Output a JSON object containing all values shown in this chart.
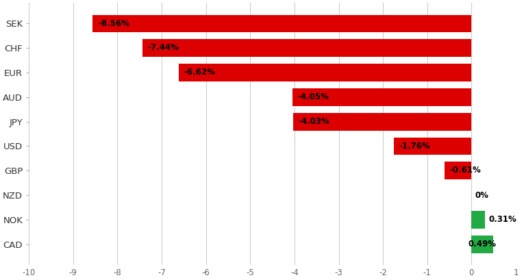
{
  "categories": [
    "SEK",
    "CHF",
    "EUR",
    "AUD",
    "JPY",
    "USD",
    "GBP",
    "NZD",
    "NOK",
    "CAD"
  ],
  "values": [
    -8.56,
    -7.44,
    -6.62,
    -4.05,
    -4.03,
    -1.76,
    -0.61,
    0.0,
    0.31,
    0.49
  ],
  "labels": [
    "-8.56%",
    "-7.44%",
    "-6.62%",
    "-4.05%",
    "-4.03%",
    "-1.76%",
    "-0.61%",
    "0%",
    "0.31%",
    "0.49%"
  ],
  "xlim": [
    -10,
    1
  ],
  "xticks": [
    -10,
    -9,
    -8,
    -7,
    -6,
    -5,
    -4,
    -3,
    -2,
    -1,
    0,
    1
  ],
  "background_color": "#ffffff",
  "grid_color": "#cccccc",
  "bar_height": 0.72,
  "figsize": [
    7.65,
    4.09
  ],
  "dpi": 100,
  "red_color": "#dd0000",
  "green_color": "#22aa44",
  "label_fontsize": 8.5,
  "ytick_fontsize": 9.5,
  "xtick_fontsize": 8.5
}
